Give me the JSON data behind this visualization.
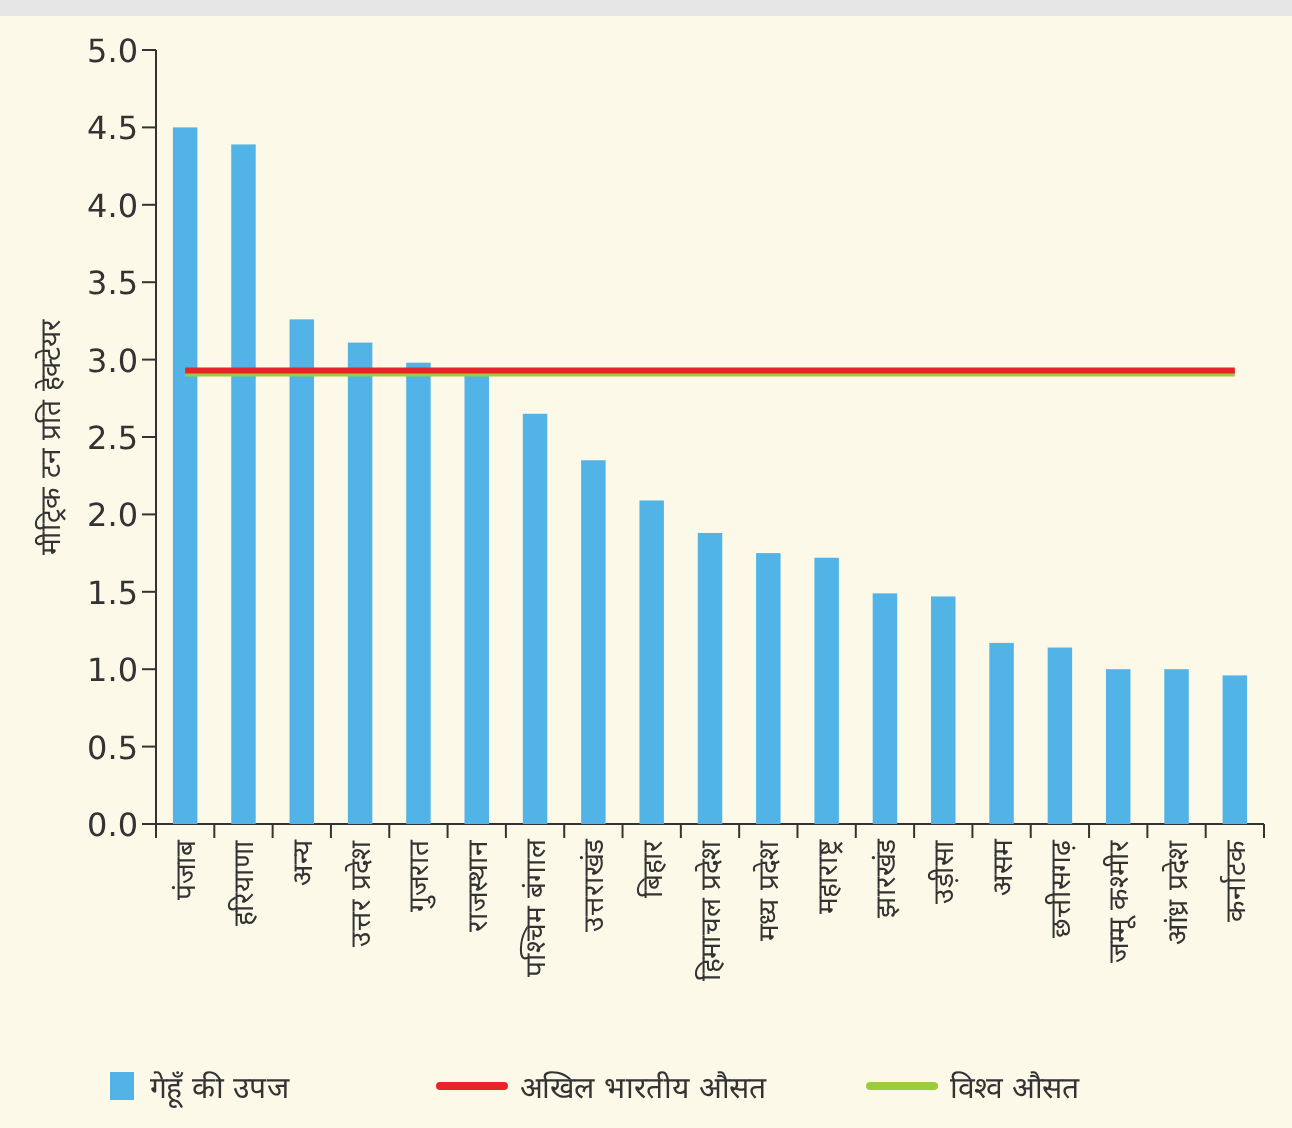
{
  "chart_data": {
    "type": "bar",
    "ylabel": "मीट्रिक टन प्रति हेक्टेयर",
    "categories": [
      "पंजाब",
      "हरियाणा",
      "अन्य",
      "उत्तर प्रदेश",
      "गुजरात",
      "राजस्थान",
      "पश्चिम बंगाल",
      "उत्तराखंड",
      "बिहार",
      "हिमाचल प्रदेश",
      "मध्य प्रदेश",
      "महाराष्ट्र",
      "झारखंड",
      "उड़ीसा",
      "असम",
      "छत्तीसगढ़",
      "जम्मू कश्मीर",
      "आंध्र प्रदेश",
      "कर्नाटक"
    ],
    "series": [
      {
        "name": "गेहूँ की उपज",
        "color": "#52b4e6",
        "values": [
          4.5,
          4.39,
          3.26,
          3.11,
          2.98,
          2.9,
          2.65,
          2.35,
          2.09,
          1.88,
          1.75,
          1.72,
          1.49,
          1.47,
          1.17,
          1.14,
          1.0,
          1.0,
          0.96
        ]
      }
    ],
    "ref_lines": [
      {
        "axis": "y",
        "value": 2.91,
        "label": "विश्व औसत",
        "color": "#9ccc3c"
      },
      {
        "axis": "y",
        "value": 2.93,
        "label": "अखिल भारतीय औसत",
        "color": "#e8242a"
      }
    ],
    "ylim": [
      0,
      5
    ],
    "yticks": [
      {
        "value": 0,
        "label": "0.0"
      },
      {
        "value": 0.5,
        "label": "0.5"
      },
      {
        "value": 1,
        "label": "1.0"
      },
      {
        "value": 1.5,
        "label": "1.5"
      },
      {
        "value": 2,
        "label": "2.0"
      },
      {
        "value": 2.5,
        "label": "2.5"
      },
      {
        "value": 3,
        "label": "3.0"
      },
      {
        "value": 3.5,
        "label": "3.5"
      },
      {
        "value": 4,
        "label": "4.0"
      },
      {
        "value": 4.5,
        "label": "4.5"
      },
      {
        "value": 5,
        "label": "5.0"
      }
    ],
    "legend": "bottom"
  }
}
